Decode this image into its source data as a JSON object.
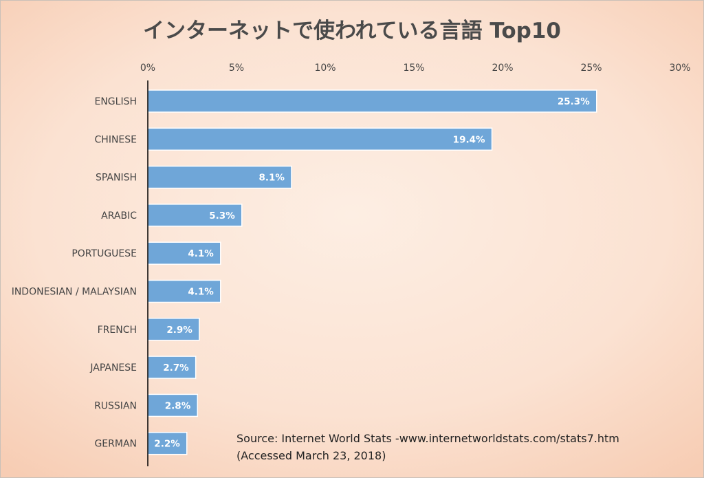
{
  "chart_data": {
    "type": "bar",
    "orientation": "horizontal",
    "title": "インターネットで使われている言語 Top10",
    "xlim": [
      0,
      30
    ],
    "x_ticks": [
      "0%",
      "5%",
      "10%",
      "15%",
      "20%",
      "25%",
      "30%"
    ],
    "tick_position": "top",
    "grid": false,
    "categories": [
      "ENGLISH",
      "CHINESE",
      "SPANISH",
      "ARABIC",
      "PORTUGUESE",
      "INDONESIAN / MALAYSIAN",
      "FRENCH",
      "JAPANESE",
      "RUSSIAN",
      "GERMAN"
    ],
    "values": [
      25.3,
      19.4,
      8.1,
      5.3,
      4.1,
      4.1,
      2.9,
      2.7,
      2.8,
      2.2
    ],
    "data_labels": [
      "25.3%",
      "19.4%",
      "8.1%",
      "5.3%",
      "4.1%",
      "4.1%",
      "2.9%",
      "2.7%",
      "2.8%",
      "2.2%"
    ],
    "colors": {
      "bar": "#6fa6d8",
      "bar_border": "#ffffff",
      "label": "#ffffff",
      "axis": "#000000",
      "text": "#444444"
    }
  },
  "source": {
    "line1": "Source: Internet World Stats -www.internetworldstats.com/stats7.htm",
    "line2": "(Accessed March 23, 2018)"
  }
}
